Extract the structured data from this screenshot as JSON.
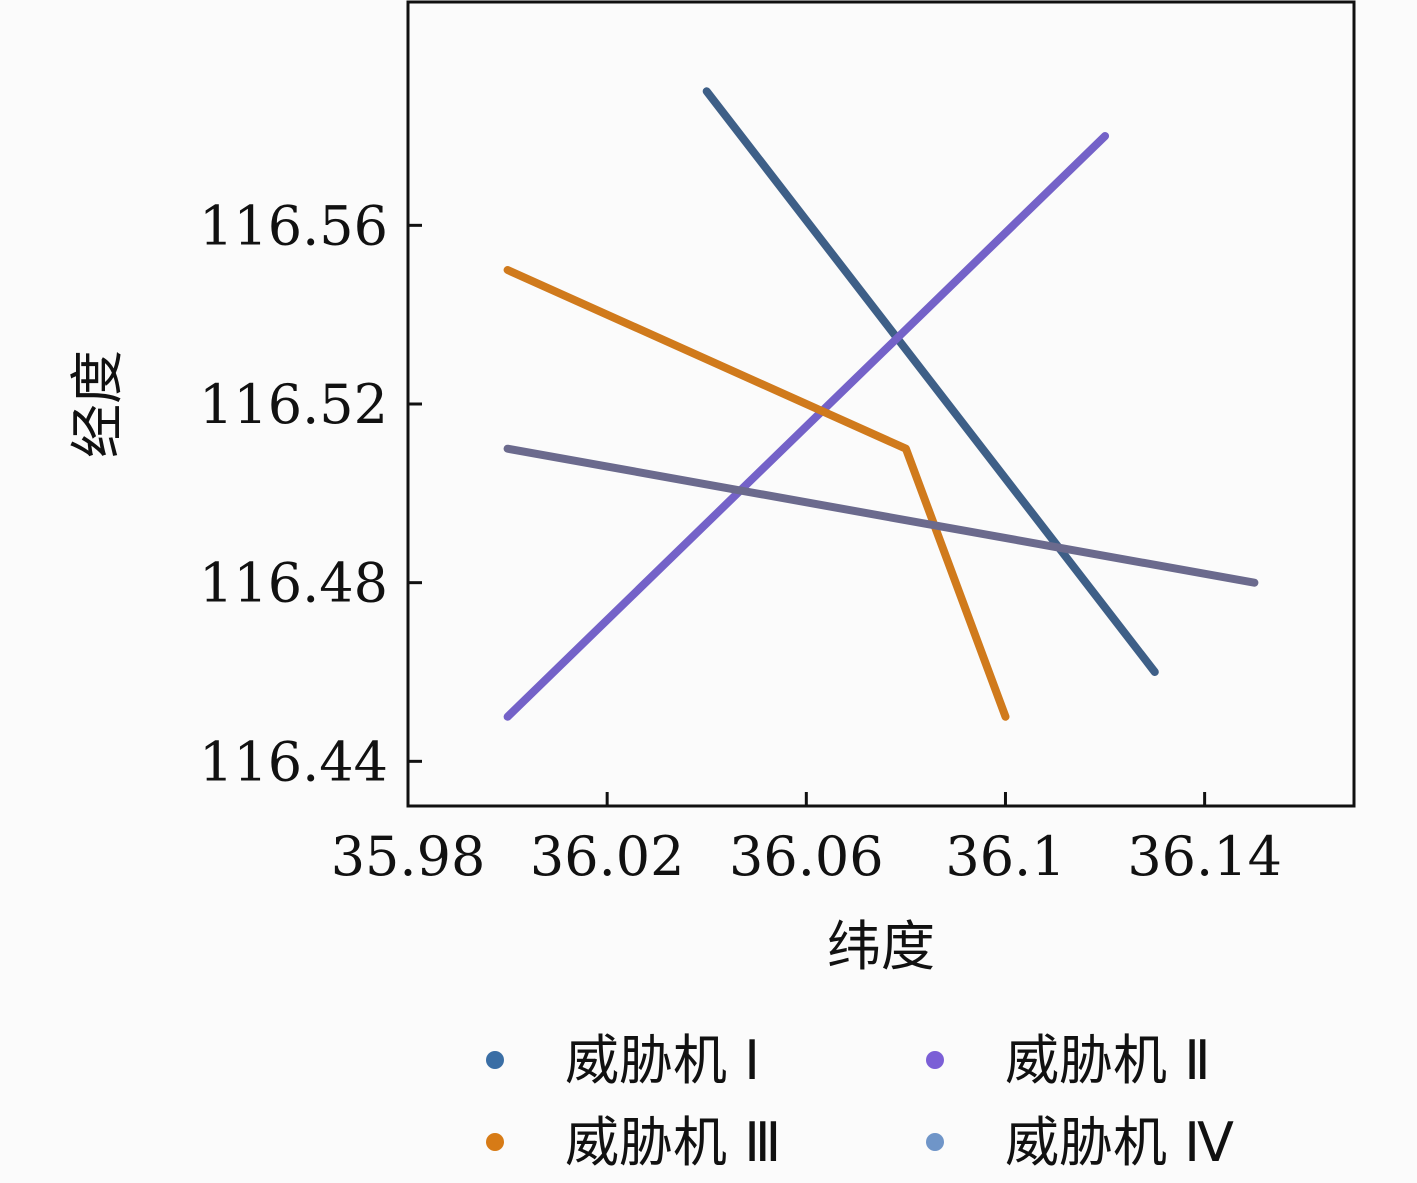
{
  "chart_data": {
    "type": "line",
    "xlabel": "纬度",
    "ylabel": "经度",
    "xlim": [
      35.98,
      36.17
    ],
    "ylim": [
      116.43,
      116.61
    ],
    "xticks": [
      35.98,
      36.02,
      36.06,
      36.1,
      36.14
    ],
    "xtick_labels": [
      "35.98",
      "36.02",
      "36.06",
      "36.1",
      "36.14"
    ],
    "yticks": [
      116.44,
      116.48,
      116.52,
      116.56
    ],
    "ytick_labels": [
      "116.44",
      "116.48",
      "116.52",
      "116.56"
    ],
    "grid": false,
    "legend_position": "bottom",
    "series": [
      {
        "name": "威胁机 Ⅰ",
        "color": "#3a6ea5",
        "line_color": "#3e5f87",
        "points": [
          [
            36.04,
            116.59
          ],
          [
            36.13,
            116.46
          ]
        ]
      },
      {
        "name": "威胁机 Ⅱ",
        "color": "#7b5fd6",
        "line_color": "#7462c8",
        "points": [
          [
            36.0,
            116.45
          ],
          [
            36.12,
            116.58
          ]
        ]
      },
      {
        "name": "威胁机 Ⅲ",
        "color": "#d77b16",
        "line_color": "#d07a1c",
        "points": [
          [
            36.0,
            116.55
          ],
          [
            36.08,
            116.51
          ],
          [
            36.1,
            116.45
          ]
        ]
      },
      {
        "name": "威胁机 Ⅳ",
        "color": "#6f95c8",
        "line_color": "#6b6a8d",
        "points": [
          [
            36.0,
            116.51
          ],
          [
            36.15,
            116.48
          ]
        ]
      }
    ]
  }
}
